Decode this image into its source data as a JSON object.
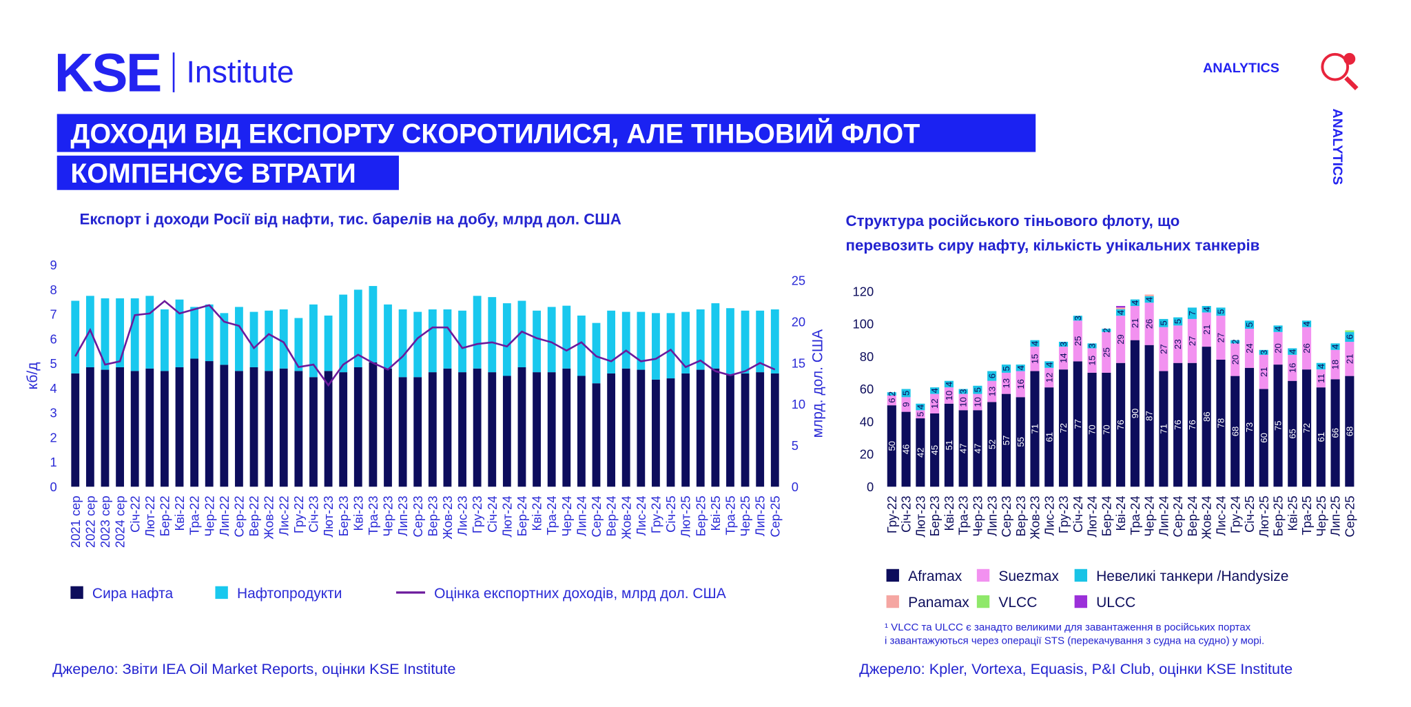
{
  "header": {
    "logo_main": "KSE",
    "logo_sub": "Institute",
    "badge": "ANALYTICS",
    "side_badge": "ANALYTICS",
    "title_lines": [
      "ДОХОДИ ВІД ЕКСПОРТУ СКОРОТИЛИСЯ, АЛЕ ТІНЬОВИЙ ФЛОТ",
      "КОМПЕНСУЄ ВТРАТИ"
    ]
  },
  "chart_data": [
    {
      "type": "bar",
      "stacked": true,
      "title": "Експорт і доходи Росії від нафти, тис. барелів на добу, млрд дол. США",
      "ylabel": "кб/д",
      "y2label": "млрд. дол. США",
      "categories": [
        "2021 сер",
        "2022 сер",
        "2023 сер",
        "2024 сер",
        "Січ-22",
        "Лют-22",
        "Бер-22",
        "Кві-22",
        "Тра-22",
        "Чер-22",
        "Лип-22",
        "Сер-22",
        "Вер-22",
        "Жов-22",
        "Лис-22",
        "Гру-22",
        "Січ-23",
        "Лют-23",
        "Бер-23",
        "Кві-23",
        "Тра-23",
        "Чер-23",
        "Лип-23",
        "Сер-23",
        "Вер-23",
        "Жов-23",
        "Лис-23",
        "Гру-23",
        "Січ-24",
        "Лют-24",
        "Бер-24",
        "Кві-24",
        "Тра-24",
        "Чер-24",
        "Лип-24",
        "Сер-24",
        "Вер-24",
        "Жов-24",
        "Лис-24",
        "Гру-24",
        "Січ-25",
        "Лют-25",
        "Бер-25",
        "Кві-25",
        "Тра-25",
        "Чер-25",
        "Лип-25",
        "Сер-25"
      ],
      "series": [
        {
          "name": "Сира нафта",
          "color": "#0d0d5c",
          "values": [
            4.6,
            4.85,
            4.75,
            4.85,
            4.7,
            4.8,
            4.7,
            4.85,
            5.2,
            5.1,
            4.95,
            4.7,
            4.85,
            4.7,
            4.8,
            4.7,
            4.45,
            4.7,
            4.65,
            4.85,
            5.05,
            4.8,
            4.45,
            4.45,
            4.65,
            4.8,
            4.65,
            4.8,
            4.65,
            4.5,
            4.85,
            4.65,
            4.65,
            4.8,
            4.5,
            4.2,
            4.6,
            4.8,
            4.75,
            4.35,
            4.4,
            4.6,
            4.75,
            4.8,
            4.55,
            4.6,
            4.65,
            4.6
          ]
        },
        {
          "name": "Нафтопродукти",
          "color": "#19c8ee",
          "values": [
            2.95,
            2.9,
            2.9,
            2.8,
            2.95,
            2.95,
            2.5,
            2.75,
            2.1,
            2.3,
            2.1,
            2.6,
            2.25,
            2.45,
            2.4,
            2.15,
            2.95,
            2.25,
            3.15,
            3.15,
            3.1,
            2.6,
            2.75,
            2.65,
            2.55,
            2.4,
            2.5,
            2.95,
            3.05,
            2.95,
            2.7,
            2.5,
            2.65,
            2.55,
            2.45,
            2.45,
            2.55,
            2.3,
            2.35,
            2.7,
            2.65,
            2.5,
            2.45,
            2.65,
            2.7,
            2.55,
            2.5,
            2.6
          ]
        },
        {
          "name": "Оцінка експортних доходів, млрд дол. США",
          "type": "line",
          "axis": "y2",
          "color": "#6b1a9c",
          "values": [
            15.8,
            19.0,
            14.8,
            15.2,
            20.8,
            21.0,
            22.5,
            21.0,
            21.5,
            22.0,
            20.0,
            19.5,
            16.8,
            18.5,
            17.5,
            14.5,
            14.8,
            12.3,
            14.8,
            16.0,
            15.0,
            14.2,
            15.8,
            18.0,
            19.3,
            19.3,
            16.8,
            17.3,
            17.5,
            17.0,
            18.8,
            18.0,
            17.5,
            16.5,
            17.5,
            15.8,
            15.2,
            16.5,
            15.2,
            15.5,
            16.6,
            14.5,
            15.3,
            14.0,
            13.5,
            14.0,
            15.0,
            14.2
          ]
        }
      ],
      "ylim": [
        0,
        9
      ],
      "yticks": [
        0,
        1,
        2,
        3,
        4,
        5,
        6,
        7,
        8,
        9
      ],
      "y2lim": [
        0,
        25
      ],
      "y2ticks": [
        0,
        5,
        10,
        15,
        20,
        25
      ],
      "source": "Джерело: Звіти IEA Oil Market Reports, оцінки KSE Institute"
    },
    {
      "type": "bar",
      "stacked": true,
      "title": [
        "Структура російського тіньового флоту, що",
        "перевозить сиру нафту, кількість унікальних танкерів"
      ],
      "categories": [
        "Гру-22",
        "Січ-23",
        "Лют-23",
        "Бер-23",
        "Кві-23",
        "Тра-23",
        "Чер-23",
        "Лип-23",
        "Сер-23",
        "Вер-23",
        "Жов-23",
        "Лис-23",
        "Гру-23",
        "Січ-24",
        "Лют-24",
        "Бер-24",
        "Кві-24",
        "Тра-24",
        "Чер-24",
        "Лип-24",
        "Сер-24",
        "Вер-24",
        "Жов-24",
        "Лис-24",
        "Гру-24",
        "Січ-25",
        "Лют-25",
        "Бер-25",
        "Кві-25",
        "Тра-25",
        "Чер-25",
        "Лип-25",
        "Сер-25"
      ],
      "series": [
        {
          "name": "Aframax",
          "color": "#0d0d5c",
          "labels": true,
          "values": [
            50,
            46,
            42,
            45,
            51,
            47,
            47,
            52,
            57,
            55,
            71,
            61,
            72,
            77,
            70,
            70,
            76,
            90,
            87,
            71,
            76,
            76,
            86,
            78,
            68,
            73,
            60,
            75,
            65,
            72,
            61,
            66,
            68
          ]
        },
        {
          "name": "Suezmax",
          "color": "#f291f0",
          "labels": true,
          "values": [
            6,
            9,
            5,
            12,
            10,
            10,
            10,
            13,
            13,
            16,
            15,
            12,
            14,
            25,
            15,
            25,
            29,
            21,
            26,
            27,
            23,
            27,
            21,
            27,
            20,
            24,
            21,
            20,
            16,
            26,
            11,
            18,
            21
          ]
        },
        {
          "name": "Невеликі танкери /Handysize",
          "color": "#19c3e6",
          "labels": true,
          "values": [
            2,
            5,
            4,
            4,
            4,
            3,
            5,
            6,
            5,
            4,
            4,
            4,
            3,
            3,
            3,
            2,
            4,
            4,
            4,
            5,
            5,
            7,
            4,
            5,
            2,
            5,
            3,
            4,
            4,
            4,
            4,
            4,
            6
          ]
        },
        {
          "name": "Panamax",
          "color": "#f5a6a2",
          "labels": false,
          "values": [
            null,
            null,
            null,
            null,
            null,
            null,
            null,
            null,
            null,
            null,
            null,
            null,
            null,
            null,
            null,
            null,
            1,
            null,
            1,
            null,
            null,
            null,
            null,
            null,
            null,
            null,
            null,
            null,
            null,
            null,
            null,
            null,
            null
          ]
        },
        {
          "name": "VLCC",
          "color": "#8fe86a",
          "labels": false,
          "values": [
            null,
            null,
            null,
            null,
            null,
            null,
            null,
            null,
            null,
            null,
            null,
            null,
            null,
            null,
            null,
            null,
            null,
            null,
            null,
            null,
            null,
            null,
            null,
            null,
            null,
            null,
            null,
            null,
            null,
            null,
            null,
            null,
            1
          ]
        },
        {
          "name": "ULCC",
          "color": "#9b30d9",
          "labels": false,
          "values": [
            null,
            null,
            null,
            null,
            null,
            null,
            null,
            null,
            null,
            null,
            null,
            null,
            null,
            null,
            null,
            null,
            1,
            null,
            null,
            null,
            null,
            null,
            null,
            null,
            null,
            null,
            null,
            null,
            null,
            null,
            null,
            null,
            null
          ]
        }
      ],
      "ylim": [
        0,
        120
      ],
      "yticks": [
        0,
        20,
        40,
        60,
        80,
        100,
        120
      ],
      "footnote": [
        "¹ VLCC та ULCC є занадто великими для завантаження в російських портах",
        "і завантажуються через операції STS (перекачування з судна на судно) у морі."
      ],
      "source": "Джерело: Kpler, Vortexa, Equasis, P&I Club, оцінки KSE Institute"
    }
  ]
}
